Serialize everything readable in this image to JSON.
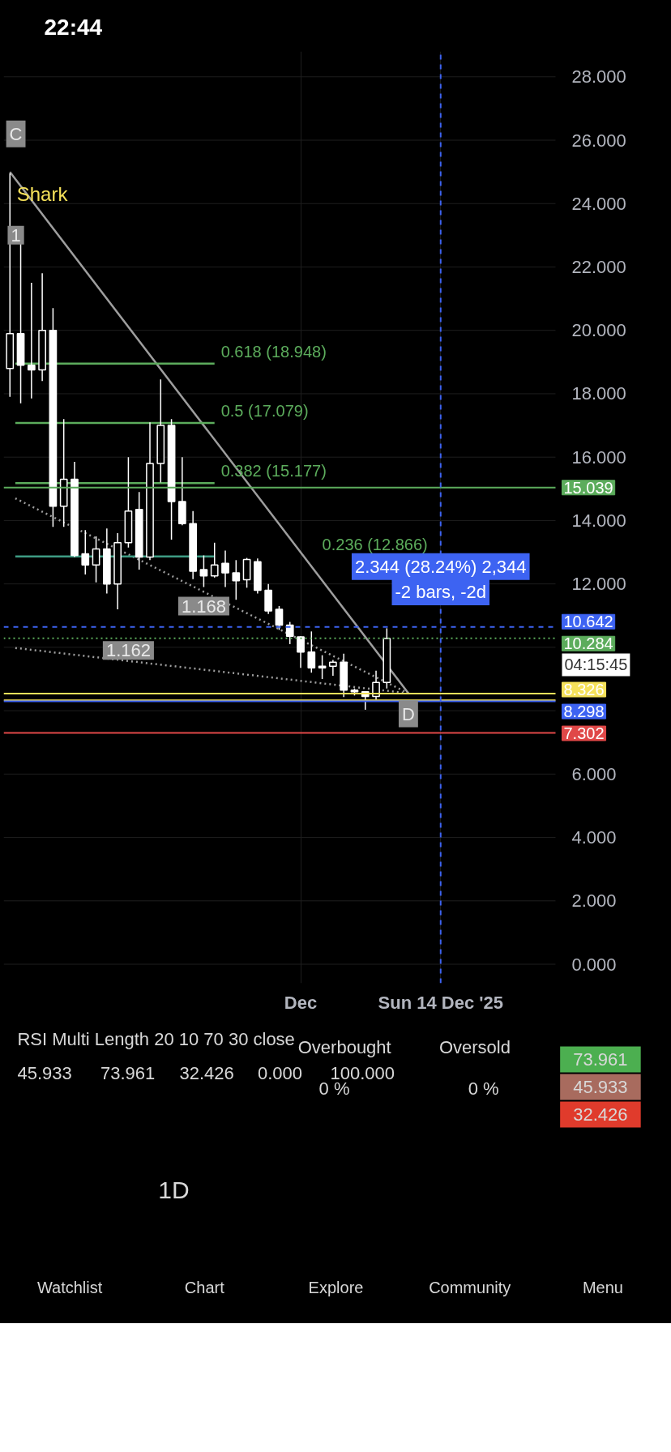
{
  "chart_data": [
    {
      "type": "candlestick",
      "x": [
        "2025-11-04",
        "2025-11-05",
        "2025-11-06",
        "2025-11-07",
        "2025-11-08",
        "2025-11-09",
        "2025-11-10",
        "2025-11-11",
        "2025-11-12",
        "2025-11-13",
        "2025-11-14",
        "2025-11-15",
        "2025-11-16",
        "2025-11-17",
        "2025-11-18",
        "2025-11-19",
        "2025-11-20",
        "2025-11-21",
        "2025-11-22",
        "2025-11-23",
        "2025-11-24",
        "2025-11-25",
        "2025-11-26",
        "2025-11-27",
        "2025-11-28",
        "2025-11-29",
        "2025-11-30",
        "2025-12-01",
        "2025-12-02",
        "2025-12-03",
        "2025-12-04",
        "2025-12-05",
        "2025-12-06",
        "2025-12-07",
        "2025-12-08",
        "2025-12-09"
      ],
      "ohlc": [
        [
          18.8,
          24.95,
          17.9,
          19.9
        ],
        [
          19.9,
          22.75,
          17.7,
          18.9
        ],
        [
          18.9,
          21.5,
          17.85,
          18.75
        ],
        [
          18.75,
          21.8,
          18.4,
          20.0
        ],
        [
          20.0,
          20.7,
          13.8,
          14.45
        ],
        [
          14.45,
          17.2,
          13.8,
          15.3
        ],
        [
          15.3,
          15.85,
          12.85,
          12.9
        ],
        [
          12.95,
          13.7,
          12.3,
          12.6
        ],
        [
          12.6,
          13.5,
          12.05,
          13.1
        ],
        [
          13.1,
          13.75,
          11.7,
          12.0
        ],
        [
          12.0,
          13.6,
          11.2,
          13.3
        ],
        [
          13.3,
          16.0,
          13.15,
          14.3
        ],
        [
          14.35,
          14.9,
          12.45,
          12.85
        ],
        [
          12.85,
          17.1,
          12.75,
          15.8
        ],
        [
          15.8,
          18.45,
          15.2,
          17.0
        ],
        [
          17.0,
          17.2,
          13.4,
          14.6
        ],
        [
          14.6,
          16.0,
          13.85,
          13.9
        ],
        [
          13.9,
          14.3,
          12.15,
          12.4
        ],
        [
          12.45,
          12.9,
          11.9,
          12.25
        ],
        [
          12.25,
          13.3,
          12.2,
          12.6
        ],
        [
          12.65,
          13.05,
          11.9,
          12.35
        ],
        [
          12.35,
          12.75,
          11.5,
          12.1
        ],
        [
          12.13,
          12.82,
          11.88,
          12.77
        ],
        [
          12.7,
          12.8,
          11.7,
          11.8
        ],
        [
          11.8,
          12.0,
          11.05,
          11.15
        ],
        [
          11.2,
          11.3,
          10.55,
          10.7
        ],
        [
          10.7,
          10.8,
          10.1,
          10.35
        ],
        [
          10.33,
          10.35,
          9.35,
          9.85
        ],
        [
          9.85,
          10.5,
          9.2,
          9.35
        ],
        [
          9.4,
          9.75,
          9.0,
          9.35
        ],
        [
          9.4,
          9.6,
          9.1,
          9.53
        ],
        [
          9.53,
          9.8,
          8.43,
          8.65
        ],
        [
          8.65,
          8.7,
          8.48,
          8.6
        ],
        [
          8.6,
          8.6,
          8.03,
          8.45
        ],
        [
          8.45,
          9.26,
          8.35,
          8.89
        ],
        [
          8.89,
          10.6,
          8.7,
          10.28
        ]
      ],
      "color": "#ffffff",
      "series": [
        {
          "type": "line",
          "x": [
            "2025-11-04",
            "2025-12-11"
          ],
          "values": [
            25.0,
            8.55
          ],
          "color": "#9e9e9e"
        },
        {
          "type": "line",
          "line_style": "dotted",
          "x": [
            "2025-11-04T12:00",
            "2025-12-11"
          ],
          "values": [
            14.7,
            8.55
          ],
          "color": "#9e9e9e"
        },
        {
          "type": "line",
          "line_style": "dotted",
          "x": [
            "2025-11-04T12:00",
            "2025-12-11"
          ],
          "values": [
            9.98,
            8.55
          ],
          "color": "#9e9e9e"
        },
        {
          "type": "line",
          "x": [
            "2025-11-04T12:00",
            "2025-11-23"
          ],
          "values": [
            18.948,
            18.948
          ],
          "color": "#5cac5c"
        },
        {
          "type": "line",
          "x": [
            "2025-11-04T12:00",
            "2025-11-23"
          ],
          "values": [
            17.079,
            17.079
          ],
          "color": "#5cac5c"
        },
        {
          "type": "line",
          "x": [
            "2025-11-04T12:00",
            "2025-11-23"
          ],
          "values": [
            15.177,
            15.177
          ],
          "color": "#5cac5c"
        },
        {
          "type": "line",
          "x": [
            "2025-11-04T12:00",
            "2025-11-23"
          ],
          "values": [
            12.866,
            12.866
          ],
          "color": "#3f9c84"
        }
      ],
      "xlim": [
        "2025-11-03T10:00",
        "2025-12-24T16:00"
      ],
      "xticks": [
        {
          "value": "2025-12-01",
          "label": "Dec"
        },
        {
          "value": "2025-12-14",
          "label": "Sun 14 Dec '25"
        }
      ],
      "ylim": [
        -0.6,
        28.8
      ],
      "yticks": [
        {
          "value": 0,
          "label": "0.000"
        },
        {
          "value": 2,
          "label": "2.000"
        },
        {
          "value": 4,
          "label": "4.000"
        },
        {
          "value": 6,
          "label": "6.000"
        },
        {
          "value": 8,
          "label": null
        },
        {
          "value": 10,
          "label": null
        },
        {
          "value": 12,
          "label": "12.000"
        },
        {
          "value": 14,
          "label": "14.000"
        },
        {
          "value": 16,
          "label": "16.000"
        },
        {
          "value": 18,
          "label": "18.000"
        },
        {
          "value": 20,
          "label": "20.000"
        },
        {
          "value": 22,
          "label": "22.000"
        },
        {
          "value": 24,
          "label": "24.000"
        },
        {
          "value": 26,
          "label": "26.000"
        },
        {
          "value": 28,
          "label": "28.000"
        }
      ],
      "grid": true,
      "ref_lines": [
        {
          "axis": "y",
          "value": 15.039,
          "label": "15.039",
          "color": "#5cac5c"
        },
        {
          "axis": "y",
          "value": 10.642,
          "label": "10.642",
          "color": "#3d63f2",
          "line_style": "dashed"
        },
        {
          "axis": "y",
          "value": 10.284,
          "label": "10.284",
          "color": "#5cac5c",
          "line_style": "dotted"
        },
        {
          "axis": "y",
          "value": 8.54,
          "label": null,
          "color": "#f5e15a"
        },
        {
          "axis": "y",
          "value": 8.326,
          "label": "8.326",
          "color": "#f5e15a"
        },
        {
          "axis": "y",
          "value": 8.298,
          "label": "8.298",
          "color": "#3d63f2"
        },
        {
          "axis": "y",
          "value": 7.302,
          "label": "7.302",
          "color": "#e04848"
        },
        {
          "axis": "x",
          "value": "2025-12-14",
          "label": null,
          "color": "#3d63f2",
          "line_style": "dashed"
        }
      ],
      "annotations": [
        "22:44",
        "04:15:45",
        "C",
        "Shark",
        "1",
        "0.618 (18.948)",
        "0.5 (17.079)",
        "0.382 (15.177)",
        "0.236 (12.866)",
        "1.168",
        "1.162",
        "D",
        "2.344 (28.24%) 2,344",
        "-2 bars, -2d"
      ]
    },
    {
      "type": "other",
      "annotations": [
        "RSI Multi Length 20 10 70 30 close",
        "45.933",
        "73.961",
        "32.426",
        "0.000",
        "100.000",
        "Overbought",
        "Oversold",
        "0 %",
        "0 %",
        "73.961",
        "45.933",
        "32.426",
        "1D",
        "Watchlist",
        "Chart",
        "Explore",
        "Community",
        "Menu"
      ]
    }
  ]
}
